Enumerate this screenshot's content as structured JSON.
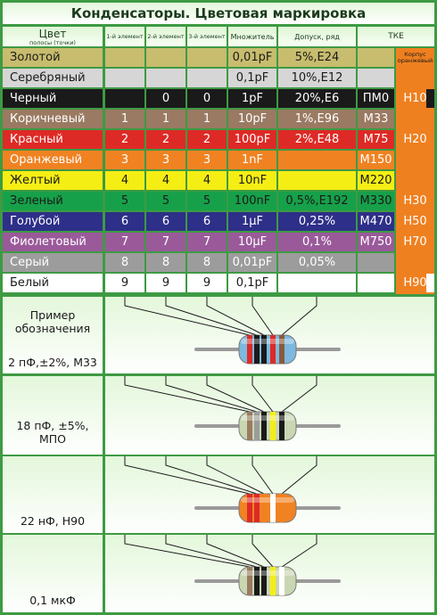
{
  "title": "Конденсаторы. Цветовая маркировка",
  "headers": {
    "color": "Цвет",
    "color_sub": "полосы (точки)",
    "el1": "1-й элемент",
    "el2": "2-й элемент",
    "el3": "3-й элемент",
    "multiplier": "Множитель",
    "tolerance": "Допуск, ряд",
    "tke": "ТКЕ",
    "body_note": "Корпус оранжевый"
  },
  "rows": [
    {
      "name": "Золотой",
      "d1": "",
      "d2": "",
      "d3": "",
      "mult": "0,01pF",
      "tol": "5%,E24",
      "tke": "",
      "tke2": "",
      "bg": "#c8bc6e",
      "fg": "#1a1a1a"
    },
    {
      "name": "Серебряный",
      "d1": "",
      "d2": "",
      "d3": "",
      "mult": "0,1pF",
      "tol": "10%,E12",
      "tke": "",
      "tke2": "",
      "bg": "#d6d6d6",
      "fg": "#1a1a1a"
    },
    {
      "name": "Черный",
      "d1": "",
      "d2": "0",
      "d3": "0",
      "mult": "1pF",
      "tol": "20%,E6",
      "tke": "ПМ0",
      "tke2": "H10",
      "bg": "#1a1a1a",
      "fg": "#ffffff"
    },
    {
      "name": "Коричневый",
      "d1": "1",
      "d2": "1",
      "d3": "1",
      "mult": "10pF",
      "tol": "1%,E96",
      "tke": "M33",
      "tke2": "",
      "bg": "#9a7a62",
      "fg": "#ffffff"
    },
    {
      "name": "Красный",
      "d1": "2",
      "d2": "2",
      "d3": "2",
      "mult": "100pF",
      "tol": "2%,E48",
      "tke": "M75",
      "tke2": "H20",
      "bg": "#de2a26",
      "fg": "#ffffff"
    },
    {
      "name": "Оранжевый",
      "d1": "3",
      "d2": "3",
      "d3": "3",
      "mult": "1nF",
      "tol": "",
      "tke": "M150",
      "tke2": "",
      "bg": "#f08222",
      "fg": "#ffffff"
    },
    {
      "name": "Желтый",
      "d1": "4",
      "d2": "4",
      "d3": "4",
      "mult": "10nF",
      "tol": "",
      "tke": "M220",
      "tke2": "",
      "bg": "#f5ee14",
      "fg": "#1a1a1a"
    },
    {
      "name": "Зеленый",
      "d1": "5",
      "d2": "5",
      "d3": "5",
      "mult": "100nF",
      "tol": "0,5%,E192",
      "tke": "M330",
      "tke2": "H30",
      "bg": "#17a04a",
      "fg": "#1a1a1a"
    },
    {
      "name": "Голубой",
      "d1": "6",
      "d2": "6",
      "d3": "6",
      "mult": "1µF",
      "tol": "0,25%",
      "tke": "M470",
      "tke2": "H50",
      "bg": "#2e2f88",
      "fg": "#ffffff"
    },
    {
      "name": "Фиолетовый",
      "d1": "7",
      "d2": "7",
      "d3": "7",
      "mult": "10µF",
      "tol": "0,1%",
      "tke": "M750",
      "tke2": "H70",
      "bg": "#9a5a9a",
      "fg": "#ffffff"
    },
    {
      "name": "Серый",
      "d1": "8",
      "d2": "8",
      "d3": "8",
      "mult": "0,01pF",
      "tol": "0,05%",
      "tke": "",
      "tke2": "",
      "bg": "#9c9c9c",
      "fg": "#ffffff"
    },
    {
      "name": "Белый",
      "d1": "9",
      "d2": "9",
      "d3": "9",
      "mult": "0,1pF",
      "tol": "",
      "tke": "",
      "tke2": "H90",
      "bg": "#ffffff",
      "fg": "#1a1a1a"
    }
  ],
  "examples": [
    {
      "label": "Пример обозначения",
      "bands": [],
      "body": ""
    },
    {
      "label": "2 пФ,±2%, M33",
      "bands": [
        "#de2a26",
        "#1a1a1a",
        "#1a1a1a",
        "#de2a26",
        "#8a5a3a"
      ],
      "body": "#7cb8e0"
    },
    {
      "label": "18 пФ, ±5%, МПО",
      "bands": [
        "#9a7a62",
        "#9c9c9c",
        "#1a1a1a",
        "#f5ee14",
        "#1a1a1a"
      ],
      "body": "#c9d6b2"
    },
    {
      "label": "22 нФ, H90",
      "bands": [
        "#de2a26",
        "#de2a26",
        "#f08222",
        "#ffffff",
        "#f08222"
      ],
      "body": "#f08222"
    },
    {
      "label": "0,1 мкФ",
      "bands": [
        "#9a7a62",
        "#1a1a1a",
        "#1a1a1a",
        "#f5ee14",
        "#ffffff"
      ],
      "body": "#c9d6b2"
    }
  ],
  "colors": {
    "tke_body": "#ef8020",
    "frame": "#3e9a43"
  }
}
